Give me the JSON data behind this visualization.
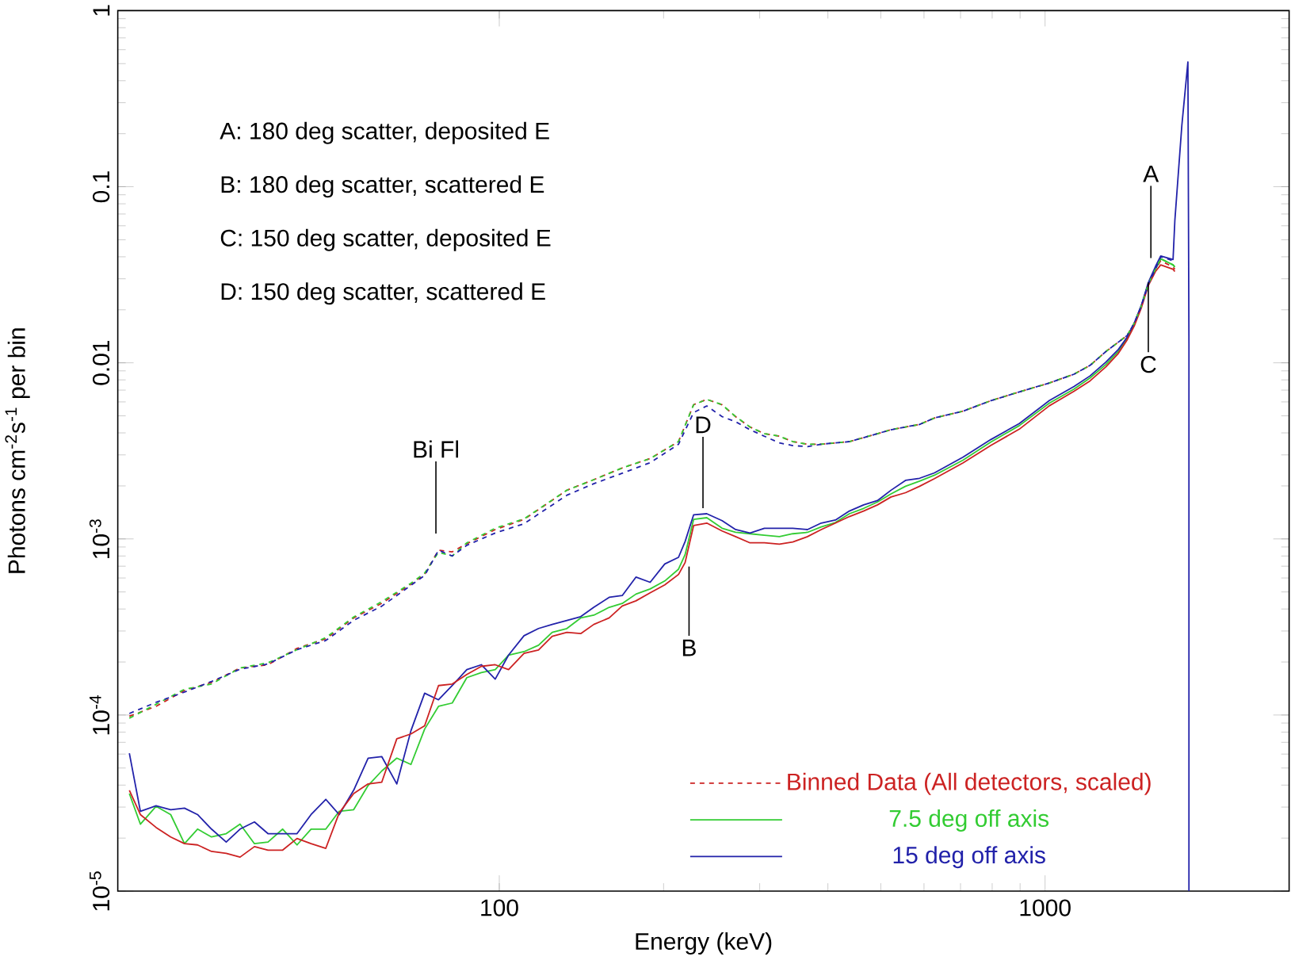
{
  "chart_data": {
    "type": "line",
    "xlabel": "Energy (keV)",
    "ylabel": "Photons cm$^{-2}$s$^{-1}$ per bin",
    "log": "xy",
    "xlim": [
      20,
      2800
    ],
    "ylim": [
      1e-05,
      1
    ],
    "xticks": [
      100,
      1000
    ],
    "yticks": [
      {
        "value": 1e-05,
        "label": "10$^{-5}$"
      },
      {
        "value": 0.0001,
        "label": "10$^{-4}$"
      },
      {
        "value": 0.001,
        "label": "10$^{-3}$"
      },
      0.01,
      0.1,
      1
    ],
    "legend": "bottom right",
    "annotations": [
      "A: 180 deg scatter, deposited E",
      "B: 180 deg scatter, scattered E",
      "C: 150 deg scatter, deposited E",
      "D: 150 deg scatter, scattered E",
      "Bi Fl",
      "D",
      "B",
      "A",
      {
        "text": "C",
        "x": 1546,
        "y": 0.0286
      }
    ],
    "series": [
      {
        "name": "Binned Data (All detectors, scaled)",
        "color": "#cc2222",
        "line_style": "dashed",
        "x": [
          21,
          23.5,
          26.5,
          29.7,
          33.5,
          37.7,
          42.6,
          48.1,
          54.1,
          60.9,
          68.9,
          73,
          77.4,
          82,
          87.2,
          98.3,
          111,
          133,
          149,
          168,
          189,
          213,
          227,
          240,
          256,
          271,
          288,
          306,
          326,
          345,
          367,
          389,
          413,
          438,
          465,
          493,
          522,
          555,
          589,
          628,
          707,
          796,
          897,
          1018,
          1130,
          1209,
          1293,
          1362,
          1414,
          1457,
          1501,
          1546,
          1593,
          1629,
          1716,
          1729
        ],
        "values": [
          9.85e-05,
          0.000112,
          0.000138,
          0.000153,
          0.000185,
          0.000193,
          0.000239,
          0.000271,
          0.000356,
          0.000431,
          0.000554,
          0.000629,
          0.000863,
          0.000845,
          0.000939,
          0.00113,
          0.00129,
          0.00189,
          0.00217,
          0.00253,
          0.00286,
          0.00357,
          0.00578,
          0.0062,
          0.00578,
          0.00495,
          0.00432,
          0.00396,
          0.00383,
          0.00357,
          0.00345,
          0.00345,
          0.00351,
          0.00357,
          0.00376,
          0.00396,
          0.00417,
          0.00432,
          0.00447,
          0.00487,
          0.00531,
          0.0061,
          0.00684,
          0.00768,
          0.00862,
          0.00967,
          0.0116,
          0.0131,
          0.0143,
          0.0168,
          0.021,
          0.028,
          0.034,
          0.038,
          0.035,
          0.034
        ]
      },
      {
        "name": "7.5 deg off axis",
        "color": "#33cc33",
        "line_style": "solid",
        "x": [
          21,
          22,
          23.5,
          25,
          26.5,
          28,
          29.7,
          31.6,
          33.5,
          35.6,
          37.7,
          40.1,
          42.6,
          45.2,
          48.1,
          50.9,
          54.1,
          57.5,
          60.9,
          64.9,
          68.9,
          73,
          77.4,
          82,
          87.2,
          92.7,
          98.3,
          104,
          111,
          118,
          125,
          133,
          141,
          149,
          159,
          168,
          178,
          189,
          201,
          213,
          219,
          227,
          240,
          256,
          271,
          288,
          306,
          326,
          345,
          367,
          389,
          413,
          438,
          465,
          493,
          522,
          555,
          589,
          627,
          707,
          796,
          897,
          1018,
          1130,
          1209,
          1293,
          1362,
          1414,
          1457,
          1501,
          1546,
          1593,
          1629,
          1716,
          1729
        ],
        "values": [
          3.58e-05,
          2.4e-05,
          3.03e-05,
          2.72e-05,
          1.86e-05,
          2.25e-05,
          2.03e-05,
          2.12e-05,
          2.4e-05,
          1.86e-05,
          1.9e-05,
          2.25e-05,
          1.83e-05,
          2.25e-05,
          2.25e-05,
          2.84e-05,
          2.9e-05,
          3.98e-05,
          4.81e-05,
          5.69e-05,
          5.24e-05,
          8.32e-05,
          0.000112,
          0.000117,
          0.000163,
          0.000174,
          0.000181,
          0.000219,
          0.000229,
          0.000249,
          0.000295,
          0.00031,
          0.000356,
          0.000369,
          0.000409,
          0.00043,
          0.000486,
          0.00052,
          0.000577,
          0.000673,
          0.000813,
          0.00129,
          0.00132,
          0.00115,
          0.00109,
          0.00107,
          0.00105,
          0.00103,
          0.00107,
          0.00109,
          0.00117,
          0.00124,
          0.00139,
          0.00149,
          0.00162,
          0.0018,
          0.00199,
          0.00213,
          0.0023,
          0.0028,
          0.00355,
          0.0044,
          0.0059,
          0.0071,
          0.0082,
          0.0098,
          0.0116,
          0.0138,
          0.0165,
          0.021,
          0.028,
          0.034,
          0.039,
          0.036,
          0.035
        ]
      },
      {
        "name": "15 deg off axis",
        "color": "#2222aa",
        "line_style": "solid",
        "x": [
          21,
          22,
          23.5,
          25,
          26.5,
          28,
          29.7,
          31.6,
          33.5,
          35.6,
          37.7,
          40.1,
          42.6,
          45.2,
          48.1,
          50.9,
          54.1,
          57.5,
          60.9,
          64.9,
          68.9,
          73,
          77.4,
          82,
          87.2,
          92.7,
          98.3,
          104,
          111,
          118,
          125,
          133,
          141,
          149,
          159,
          168,
          178,
          189,
          201,
          213,
          219,
          227,
          240,
          256,
          271,
          288,
          306,
          326,
          345,
          367,
          389,
          413,
          438,
          465,
          493,
          522,
          555,
          589,
          627,
          707,
          796,
          897,
          1018,
          1130,
          1209,
          1293,
          1362,
          1414,
          1457,
          1501,
          1546,
          1593,
          1629,
          1716,
          1729,
          1781,
          1827,
          1835,
          1835
        ],
        "values": [
          6.07e-05,
          2.84e-05,
          3.05e-05,
          2.9e-05,
          2.96e-05,
          2.72e-05,
          2.25e-05,
          1.9e-05,
          2.25e-05,
          2.47e-05,
          2.12e-05,
          2.12e-05,
          2.12e-05,
          2.72e-05,
          3.32e-05,
          2.72e-05,
          3.74e-05,
          5.69e-05,
          5.81e-05,
          4.06e-05,
          8.15e-05,
          0.000133,
          0.000122,
          0.000147,
          0.000181,
          0.000193,
          0.00016,
          0.000219,
          0.000282,
          0.00031,
          0.000327,
          0.000344,
          0.000362,
          0.000409,
          0.000466,
          0.000477,
          0.000607,
          0.000567,
          0.000721,
          0.000786,
          0.000966,
          0.00137,
          0.00139,
          0.00127,
          0.00113,
          0.00108,
          0.00115,
          0.00115,
          0.00115,
          0.00113,
          0.00123,
          0.00128,
          0.00144,
          0.00156,
          0.00165,
          0.00189,
          0.00215,
          0.00221,
          0.00237,
          0.00291,
          0.00367,
          0.00452,
          0.0061,
          0.00734,
          0.00843,
          0.0101,
          0.0119,
          0.014,
          0.0168,
          0.0212,
          0.0286,
          0.0352,
          0.0404,
          0.0386,
          0.0641,
          0.223,
          0.511,
          0.0128,
          1e-05
        ]
      },
      {
        "color": "#cc2222",
        "line_style": "solid",
        "x": [
          21,
          22,
          23.5,
          25,
          26.5,
          28,
          29.7,
          31.6,
          33.5,
          35.6,
          37.7,
          40.1,
          42.6,
          45.2,
          48.1,
          50.9,
          54.1,
          57.5,
          60.9,
          64.9,
          68.9,
          73,
          77.4,
          82,
          87.2,
          92.7,
          98.3,
          104,
          111,
          118,
          125,
          133,
          141,
          149,
          159,
          168,
          178,
          189,
          201,
          213,
          219,
          227,
          240,
          256,
          271,
          288,
          306,
          326,
          345,
          367,
          389,
          413,
          438,
          465,
          493,
          522,
          555,
          589,
          627,
          707,
          796,
          897,
          1018,
          1130,
          1209,
          1293,
          1362,
          1414,
          1457,
          1501,
          1546,
          1593,
          1629,
          1716,
          1729
        ],
        "values": [
          3.74e-05,
          2.72e-05,
          2.3e-05,
          2.03e-05,
          1.86e-05,
          1.83e-05,
          1.68e-05,
          1.64e-05,
          1.56e-05,
          1.79e-05,
          1.71e-05,
          1.71e-05,
          1.99e-05,
          1.86e-05,
          1.75e-05,
          2.78e-05,
          3.58e-05,
          4.06e-05,
          4.15e-05,
          7.33e-05,
          7.81e-05,
          8.68e-05,
          0.000147,
          0.00015,
          0.00017,
          0.000189,
          0.000193,
          0.000181,
          0.000224,
          0.000234,
          0.00028,
          0.000295,
          0.00029,
          0.000327,
          0.000356,
          0.000416,
          0.000445,
          0.000494,
          0.000548,
          0.000628,
          0.000734,
          0.00119,
          0.00123,
          0.00111,
          0.00103,
          0.00095,
          0.00095,
          0.000933,
          0.00096,
          0.00103,
          0.00113,
          0.00123,
          0.00134,
          0.00144,
          0.00156,
          0.00173,
          0.00183,
          0.00199,
          0.0022,
          0.0027,
          0.0034,
          0.0042,
          0.0057,
          0.0069,
          0.0079,
          0.0095,
          0.0113,
          0.0135,
          0.0162,
          0.0205,
          0.0275,
          0.033,
          0.036,
          0.034,
          0.033
        ]
      },
      {
        "color": "#33cc33",
        "line_style": "dashed",
        "x": [
          21,
          23.5,
          26.5,
          29.7,
          33.5,
          37.7,
          42.6,
          48.1,
          54.1,
          60.9,
          68.9,
          73,
          77.4,
          82,
          87.2,
          98.3,
          111,
          133,
          149,
          168,
          189,
          213,
          227,
          240,
          256,
          271,
          288,
          306,
          326,
          345,
          367,
          389,
          413,
          438,
          465,
          493,
          522,
          555,
          589,
          628,
          707,
          796,
          897,
          1018,
          1130,
          1209,
          1293,
          1362,
          1414,
          1457,
          1501,
          1546,
          1593,
          1629,
          1716,
          1729
        ],
        "values": [
          9.6e-05,
          0.000115,
          0.00014,
          0.00015,
          0.000185,
          0.000198,
          0.000235,
          0.000275,
          0.00036,
          0.00044,
          0.00056,
          0.00064,
          0.00084,
          0.0008,
          0.00095,
          0.00115,
          0.0013,
          0.00189,
          0.00217,
          0.00253,
          0.00286,
          0.00357,
          0.00578,
          0.0062,
          0.00578,
          0.00495,
          0.00432,
          0.00396,
          0.00383,
          0.00357,
          0.00345,
          0.00345,
          0.00351,
          0.00357,
          0.00376,
          0.00396,
          0.00417,
          0.00432,
          0.00447,
          0.00487,
          0.00531,
          0.0061,
          0.00684,
          0.00768,
          0.00862,
          0.00967,
          0.0116,
          0.0131,
          0.0143,
          0.0168,
          0.021,
          0.028,
          0.034,
          0.039,
          0.036,
          0.035
        ]
      },
      {
        "color": "#2222aa",
        "line_style": "dashed",
        "x": [
          21,
          23.5,
          26.5,
          29.7,
          33.5,
          37.7,
          42.6,
          48.1,
          54.1,
          60.9,
          68.9,
          73,
          77.4,
          82,
          87.2,
          98.3,
          111,
          133,
          149,
          168,
          189,
          213,
          227,
          240,
          256,
          271,
          288,
          306,
          326,
          345,
          367,
          389,
          413,
          438,
          465,
          493,
          522,
          555,
          589,
          628,
          707,
          796,
          897,
          1018,
          1130,
          1209,
          1293,
          1362,
          1414,
          1457,
          1501,
          1546,
          1593,
          1629,
          1716,
          1729
        ],
        "values": [
          0.000102,
          0.000118,
          0.000135,
          0.000155,
          0.000182,
          0.000195,
          0.000235,
          0.000265,
          0.000345,
          0.000415,
          0.000545,
          0.00062,
          0.000863,
          0.0008,
          0.00092,
          0.00108,
          0.00122,
          0.00177,
          0.00206,
          0.00236,
          0.00271,
          0.00345,
          0.00522,
          0.00569,
          0.00495,
          0.00463,
          0.00417,
          0.00383,
          0.00351,
          0.00339,
          0.00334,
          0.00345,
          0.00351,
          0.00357,
          0.00376,
          0.00396,
          0.00417,
          0.00432,
          0.00447,
          0.00487,
          0.00531,
          0.0061,
          0.00684,
          0.00768,
          0.00862,
          0.00967,
          0.0116,
          0.0131,
          0.0143,
          0.0168,
          0.021,
          0.028,
          0.034,
          0.04,
          0.038,
          0.037
        ]
      }
    ]
  }
}
